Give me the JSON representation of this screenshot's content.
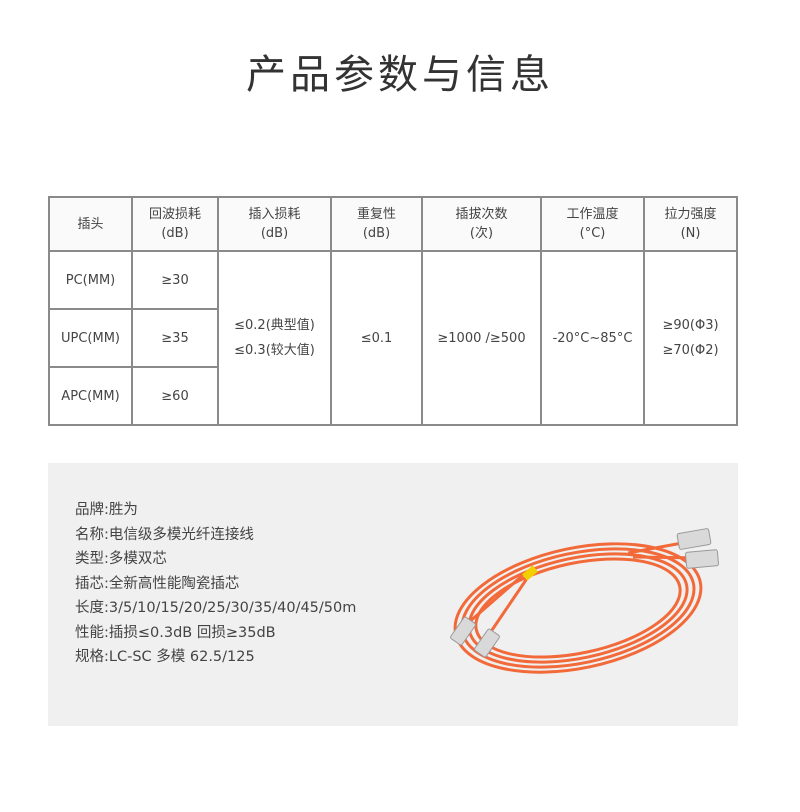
{
  "title": "产品参数与信息",
  "table": {
    "headers": [
      "插头",
      "回波损耗\n(dB)",
      "插入损耗\n(dB)",
      "重复性\n(dB)",
      "插拔次数\n(次)",
      "工作温度\n(°C)",
      "拉力强度\n(N)"
    ],
    "connectors": [
      "PC(MM)",
      "UPC(MM)",
      "APC(MM)"
    ],
    "return_loss": [
      "≥30",
      "≥35",
      "≥60"
    ],
    "insertion_loss": [
      "≤0.2(典型值)",
      "≤0.3(较大值)"
    ],
    "repeatability": "≤0.1",
    "mating_cycles": "≥1000 /≥500",
    "temperature": "-20°C~85°C",
    "tensile": [
      "≥90(Φ3)",
      "≥70(Φ2)"
    ]
  },
  "specs": [
    "品牌:胜为",
    "名称:电信级多模光纤连接线",
    "类型:多模双芯",
    "插芯:全新高性能陶瓷插芯",
    "长度:3/5/10/15/20/25/30/35/40/45/50m",
    "性能:插损≤0.3dB 回损≥35dB",
    "规格:LC-SC 多模 62.5/125"
  ],
  "colors": {
    "cable": "#f26a3a",
    "connector_body": "#d9d9d9"
  }
}
